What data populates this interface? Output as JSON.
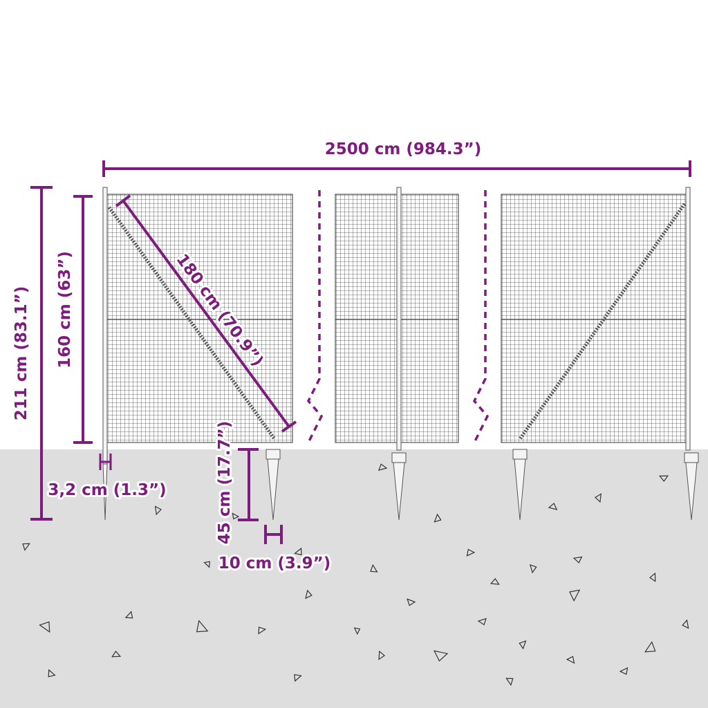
{
  "dimensions": {
    "total_length": "2500 cm (984.3”)",
    "total_height": "211 cm (83.1”)",
    "fence_height": "160 cm (63”)",
    "brace_length": "180 cm (70.9”)",
    "post_diameter": "3,2 cm (1.3”)",
    "spike_depth": "45 cm (17.7”)",
    "spike_width": "10 cm (3.9”)"
  },
  "colors": {
    "dimension": "#7d1c7d",
    "ground": "#dedede",
    "mesh": "#333333"
  }
}
